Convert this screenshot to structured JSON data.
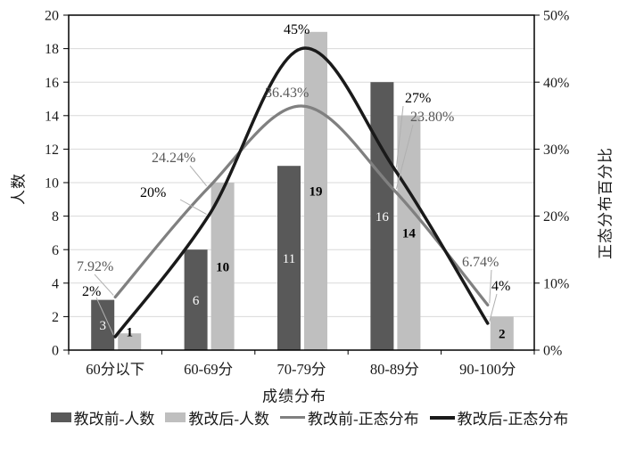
{
  "chart_data": {
    "type": "combo_bar_line",
    "categories": [
      "60分以下",
      "60-69分",
      "70-79分",
      "80-89分",
      "90-100分"
    ],
    "x_axis": {
      "title": "成绩分布"
    },
    "left_axis": {
      "title": "人数",
      "min": 0,
      "max": 20,
      "step": 2,
      "tick_labels": [
        "0",
        "2",
        "4",
        "6",
        "8",
        "10",
        "12",
        "14",
        "16",
        "18",
        "20"
      ]
    },
    "right_axis": {
      "title": "正态分布百分比",
      "min_pct": 0,
      "max_pct": 50,
      "step_pct": 10,
      "tick_labels": [
        "0%",
        "10%",
        "20%",
        "30%",
        "40%",
        "50%"
      ]
    },
    "bar_series": [
      {
        "name": "教改前-人数",
        "color": "#595959",
        "label_color": "#ffffff",
        "label_bold": false,
        "values": [
          3,
          6,
          11,
          16,
          null
        ],
        "labels": [
          "3",
          "6",
          "11",
          "16",
          ""
        ]
      },
      {
        "name": "教改后-人数",
        "color": "#bfbfbf",
        "label_color": "#000000",
        "label_bold": true,
        "values": [
          1,
          10,
          19,
          14,
          2
        ],
        "labels": [
          "1",
          "10",
          "19",
          "14",
          "2"
        ]
      }
    ],
    "line_series": [
      {
        "name": "教改前-正态分布",
        "color": "#808080",
        "label_color": "#595959",
        "values_pct": [
          7.92,
          24.24,
          36.43,
          23.8,
          6.74
        ],
        "labels": [
          "7.92%",
          "24.24%",
          "36.43%",
          "23.80%",
          "6.74%"
        ]
      },
      {
        "name": "教改后-正态分布",
        "color": "#1a1a1a",
        "label_color": "#000000",
        "values_pct": [
          2,
          20,
          45,
          27,
          4
        ],
        "labels": [
          "2%",
          "20%",
          "45%",
          "27%",
          "4%"
        ]
      }
    ],
    "legend": [
      "教改前-人数",
      "教改后-人数",
      "教改前-正态分布",
      "教改后-正态分布"
    ],
    "grid": true,
    "legend_position": "bottom",
    "colors": {
      "gridline": "#d9d9d9",
      "axis": "#000000",
      "leader": "#b0b0b0",
      "background": "#ffffff"
    }
  }
}
